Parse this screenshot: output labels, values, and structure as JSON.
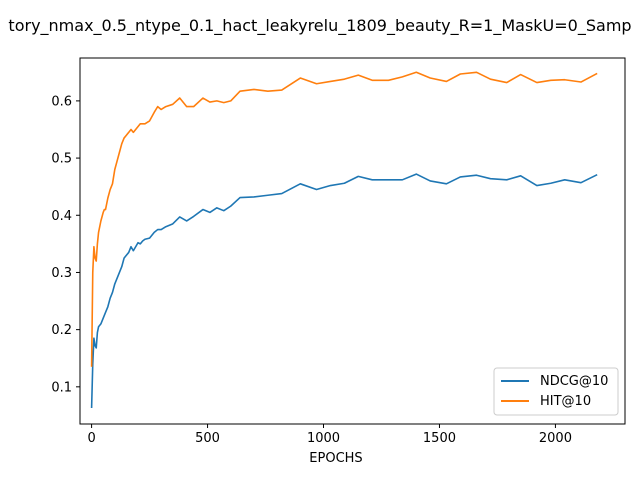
{
  "chart_data": {
    "type": "line",
    "title": "tory_nmax_0.5_ntype_0.1_hact_leakyrelu_1809_beauty_R=1_MaskU=0_Samp",
    "xlabel": "EPOCHS",
    "ylabel": "",
    "xlim": [
      -50,
      2300
    ],
    "ylim": [
      0.035,
      0.675
    ],
    "xticks": [
      0,
      500,
      1000,
      1500,
      2000
    ],
    "xtick_labels": [
      "0",
      "500",
      "1000",
      "1500",
      "2000"
    ],
    "yticks": [
      0.1,
      0.2,
      0.3,
      0.4,
      0.5,
      0.6
    ],
    "ytick_labels": [
      "0.1",
      "0.2",
      "0.3",
      "0.4",
      "0.5",
      "0.6"
    ],
    "grid": false,
    "legend_position": "lower-right",
    "series": [
      {
        "name": "NDCG@10",
        "color": "#1f77b4",
        "x": [
          0,
          5,
          10,
          15,
          20,
          25,
          30,
          40,
          50,
          55,
          60,
          70,
          80,
          90,
          100,
          110,
          120,
          130,
          140,
          150,
          160,
          170,
          180,
          190,
          200,
          210,
          220,
          230,
          250,
          270,
          285,
          300,
          320,
          350,
          380,
          410,
          440,
          480,
          510,
          540,
          570,
          600,
          640,
          700,
          760,
          820,
          900,
          970,
          1030,
          1090,
          1150,
          1210,
          1280,
          1340,
          1400,
          1460,
          1530,
          1590,
          1660,
          1720,
          1790,
          1850,
          1920,
          1980,
          2040,
          2110,
          2180
        ],
        "y": [
          0.063,
          0.14,
          0.185,
          0.172,
          0.168,
          0.195,
          0.205,
          0.21,
          0.22,
          0.225,
          0.23,
          0.24,
          0.255,
          0.265,
          0.28,
          0.29,
          0.3,
          0.31,
          0.325,
          0.33,
          0.335,
          0.345,
          0.338,
          0.345,
          0.352,
          0.35,
          0.355,
          0.358,
          0.36,
          0.37,
          0.375,
          0.375,
          0.38,
          0.385,
          0.397,
          0.39,
          0.398,
          0.41,
          0.405,
          0.413,
          0.408,
          0.416,
          0.431,
          0.432,
          0.435,
          0.438,
          0.455,
          0.445,
          0.452,
          0.456,
          0.468,
          0.462,
          0.462,
          0.462,
          0.472,
          0.46,
          0.455,
          0.467,
          0.47,
          0.464,
          0.462,
          0.469,
          0.452,
          0.456,
          0.462,
          0.457,
          0.471
        ]
      },
      {
        "name": "HIT@10",
        "color": "#ff7f0e",
        "x": [
          0,
          5,
          10,
          15,
          20,
          25,
          30,
          40,
          50,
          55,
          60,
          70,
          80,
          90,
          100,
          110,
          120,
          130,
          140,
          150,
          160,
          170,
          180,
          190,
          200,
          210,
          220,
          230,
          250,
          270,
          285,
          300,
          320,
          350,
          380,
          410,
          440,
          480,
          510,
          540,
          570,
          600,
          640,
          700,
          760,
          820,
          900,
          970,
          1030,
          1090,
          1150,
          1210,
          1280,
          1340,
          1400,
          1460,
          1530,
          1590,
          1660,
          1720,
          1790,
          1850,
          1920,
          1980,
          2040,
          2110,
          2180
        ],
        "y": [
          0.135,
          0.3,
          0.345,
          0.325,
          0.32,
          0.35,
          0.37,
          0.39,
          0.405,
          0.41,
          0.41,
          0.43,
          0.445,
          0.455,
          0.48,
          0.495,
          0.51,
          0.525,
          0.535,
          0.54,
          0.545,
          0.55,
          0.545,
          0.55,
          0.555,
          0.56,
          0.56,
          0.56,
          0.565,
          0.58,
          0.59,
          0.585,
          0.59,
          0.594,
          0.605,
          0.59,
          0.59,
          0.605,
          0.598,
          0.6,
          0.597,
          0.6,
          0.617,
          0.62,
          0.617,
          0.619,
          0.64,
          0.63,
          0.634,
          0.638,
          0.645,
          0.636,
          0.636,
          0.642,
          0.65,
          0.64,
          0.634,
          0.647,
          0.65,
          0.638,
          0.632,
          0.646,
          0.632,
          0.636,
          0.637,
          0.633,
          0.648
        ]
      }
    ]
  }
}
